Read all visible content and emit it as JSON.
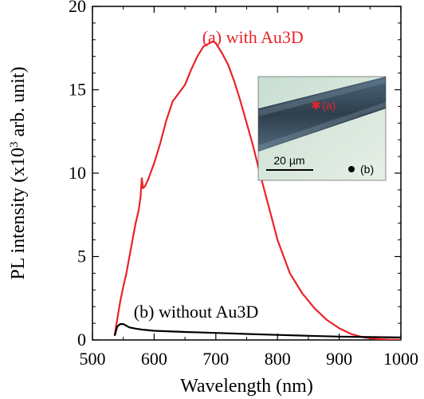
{
  "chart_data": {
    "type": "line",
    "xlabel": "Wavelength (nm)",
    "ylabel": {
      "prefix": "PL intensity (x10",
      "exponent": "3",
      "suffix": " arb. unit)"
    },
    "xlim": [
      500,
      1000
    ],
    "ylim": [
      0,
      20
    ],
    "xticks": [
      "500",
      "600",
      "700",
      "800",
      "900",
      "1000"
    ],
    "yticks": [
      "0",
      "5",
      "10",
      "15",
      "20"
    ],
    "grid": false,
    "series": [
      {
        "name": "(a) with Au3D",
        "color": "#e8242a",
        "x": [
          536,
          540,
          545,
          550,
          555,
          560,
          565,
          570,
          575,
          578,
          580,
          582,
          585,
          590,
          600,
          610,
          620,
          630,
          640,
          650,
          660,
          670,
          680,
          690,
          695,
          700,
          710,
          720,
          730,
          740,
          750,
          760,
          770,
          780,
          790,
          800,
          820,
          840,
          860,
          880,
          900,
          920,
          940,
          960,
          980,
          1000
        ],
        "y": [
          0.3,
          1.2,
          2.3,
          3.2,
          4.0,
          5.0,
          6.0,
          7.0,
          7.8,
          8.6,
          9.7,
          9.1,
          9.2,
          9.6,
          10.6,
          11.8,
          13.2,
          14.3,
          14.8,
          15.3,
          16.2,
          17.0,
          17.6,
          17.8,
          17.9,
          17.8,
          17.2,
          16.5,
          15.5,
          14.3,
          13.0,
          11.7,
          10.2,
          8.8,
          7.4,
          6.0,
          4.0,
          2.8,
          1.9,
          1.2,
          0.7,
          0.35,
          0.15,
          0.06,
          0.02,
          0.01
        ]
      },
      {
        "name": "(b) without Au3D",
        "color": "#000000",
        "x": [
          536,
          540,
          545,
          550,
          555,
          560,
          570,
          580,
          600,
          650,
          700,
          750,
          800,
          850,
          900,
          950,
          1000
        ],
        "y": [
          0.25,
          0.8,
          0.95,
          0.95,
          0.85,
          0.75,
          0.68,
          0.62,
          0.55,
          0.48,
          0.42,
          0.36,
          0.3,
          0.25,
          0.2,
          0.17,
          0.15
        ]
      }
    ],
    "annotations": [
      {
        "label": "(a) with Au3D",
        "color": "#e8242a",
        "x": 760,
        "y": 17.8
      },
      {
        "label": "(b) without Au3D",
        "color": "#000000",
        "x": 668,
        "y": 1.35
      }
    ],
    "inset": {
      "marker_a_label": "(a)",
      "marker_b_label": "(b)",
      "scalebar_label": "20 µm"
    }
  }
}
